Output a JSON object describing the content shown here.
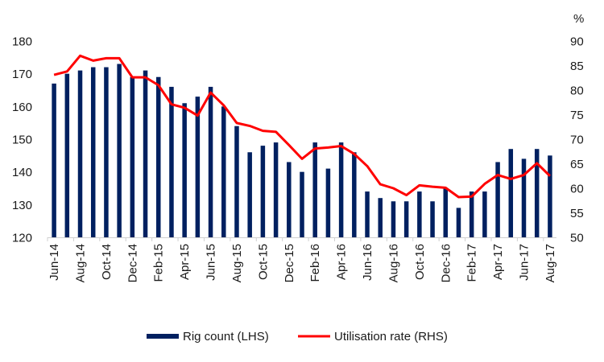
{
  "chart_data": {
    "type": "bar+line",
    "title": "",
    "categories": [
      "Jun-14",
      "Jul-14",
      "Aug-14",
      "Sep-14",
      "Oct-14",
      "Nov-14",
      "Dec-14",
      "Jan-15",
      "Feb-15",
      "Mar-15",
      "Apr-15",
      "May-15",
      "Jun-15",
      "Jul-15",
      "Aug-15",
      "Sep-15",
      "Oct-15",
      "Nov-15",
      "Dec-15",
      "Jan-16",
      "Feb-16",
      "Mar-16",
      "Apr-16",
      "May-16",
      "Jun-16",
      "Jul-16",
      "Aug-16",
      "Sep-16",
      "Oct-16",
      "Nov-16",
      "Dec-16",
      "Jan-17",
      "Feb-17",
      "Mar-17",
      "Apr-17",
      "May-17",
      "Jun-17",
      "Jul-17",
      "Aug-17"
    ],
    "x_tick_labels": [
      "Jun-14",
      "Aug-14",
      "Oct-14",
      "Dec-14",
      "Feb-15",
      "Apr-15",
      "Jun-15",
      "Aug-15",
      "Oct-15",
      "Dec-15",
      "Feb-16",
      "Apr-16",
      "Jun-16",
      "Aug-16",
      "Oct-16",
      "Dec-16",
      "Feb-17",
      "Apr-17",
      "Jun-17",
      "Aug-17"
    ],
    "series": [
      {
        "name": "Rig count (LHS)",
        "type": "bar",
        "axis": "left",
        "color": "#002060",
        "values": [
          167,
          170,
          171,
          172,
          172,
          173,
          169,
          171,
          169,
          166,
          161,
          163,
          166,
          160,
          154,
          146,
          148,
          149,
          143,
          140,
          149,
          141,
          149,
          146,
          134,
          132,
          131,
          131,
          134,
          131,
          135,
          129,
          134,
          134,
          143,
          147,
          144,
          147,
          145
        ]
      },
      {
        "name": "Utilisation rate (RHS)",
        "type": "line",
        "axis": "right",
        "color": "#FF0000",
        "values": [
          83.1,
          83.8,
          87.0,
          86.0,
          86.5,
          86.5,
          82.6,
          82.6,
          81.0,
          77.1,
          76.4,
          74.8,
          79.5,
          76.9,
          73.3,
          72.7,
          71.7,
          71.5,
          68.8,
          66.0,
          68.1,
          68.3,
          68.6,
          67.0,
          64.5,
          60.8,
          60.0,
          58.6,
          60.6,
          60.3,
          60.1,
          58.2,
          58.3,
          60.9,
          62.7,
          61.9,
          62.7,
          65.1,
          62.5
        ]
      }
    ],
    "y_left": {
      "label": "",
      "ylim": [
        120,
        180
      ],
      "ticks": [
        "120",
        "130",
        "140",
        "150",
        "160",
        "170",
        "180"
      ]
    },
    "y_right": {
      "label": "%",
      "ylim": [
        50,
        90
      ],
      "ticks": [
        "50",
        "55",
        "60",
        "65",
        "70",
        "75",
        "80",
        "85",
        "90"
      ]
    },
    "grid": false,
    "legend_position": "bottom"
  }
}
